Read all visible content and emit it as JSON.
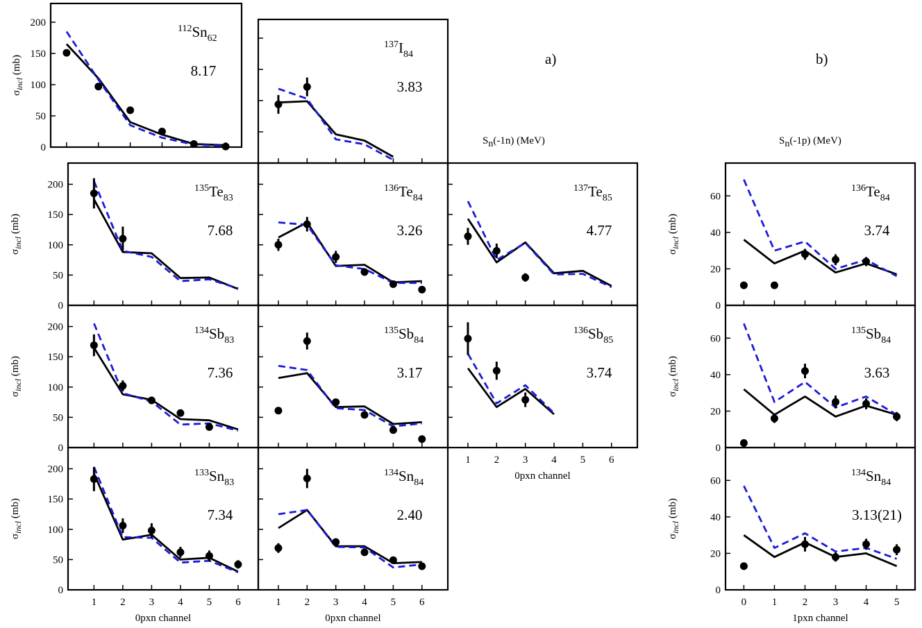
{
  "figure": {
    "label_a": "a)",
    "label_b": "b)",
    "sn_1n_label": "S",
    "sn_1n_sub": "n",
    "sn_1n_rest": "(-1n) (MeV)",
    "sn_1p_label": "S",
    "sn_1p_sub": "n",
    "sn_1p_rest": "(-1p) (MeV)"
  },
  "colors": {
    "theory_solid": "#000000",
    "theory_dashed": "#1a1adc",
    "data": "#000000"
  },
  "chart_data": [
    {
      "id": "sn112",
      "type": "line",
      "nucleus": {
        "mass": "112",
        "symbol": "Sn",
        "n": "62"
      },
      "value_label": "8.17",
      "ylabel": {
        "sigma": "σ",
        "sub": "incl",
        "unit": " (mb)"
      },
      "ylim": [
        0,
        230
      ],
      "yticks": [
        "0",
        "50",
        "100",
        "150",
        "200"
      ],
      "xlim": [
        -0.5,
        5.5
      ],
      "xticks": [],
      "series": [
        {
          "style": "solid",
          "x": [
            0,
            1,
            2,
            3,
            4,
            5
          ],
          "y": [
            165,
            110,
            40,
            20,
            5,
            3
          ]
        },
        {
          "style": "dashed",
          "x": [
            0,
            1,
            2,
            3,
            4,
            5
          ],
          "y": [
            185,
            108,
            35,
            15,
            4,
            2
          ]
        },
        {
          "style": "points",
          "x": [
            0,
            1,
            2,
            3,
            4,
            5
          ],
          "y": [
            151,
            97,
            59,
            25,
            5,
            1
          ],
          "err": [
            0,
            0,
            0,
            0,
            0,
            0
          ]
        }
      ]
    },
    {
      "id": "i137",
      "type": "line",
      "nucleus": {
        "mass": "137",
        "symbol": "I",
        "n": "84"
      },
      "value_label": "3.83",
      "ylim": [
        0,
        230
      ],
      "yticks": [],
      "xlim": [
        0.3,
        6.9
      ],
      "xticks": [],
      "series": [
        {
          "style": "solid",
          "x": [
            1,
            2,
            3,
            4,
            5
          ],
          "y": [
            97,
            99,
            46,
            36,
            10
          ]
        },
        {
          "style": "dashed",
          "x": [
            1,
            2,
            3,
            4,
            5
          ],
          "y": [
            119,
            103,
            38,
            30,
            5
          ]
        },
        {
          "style": "points",
          "x": [
            1,
            2
          ],
          "y": [
            94,
            122
          ],
          "err": [
            15,
            15
          ]
        }
      ]
    },
    {
      "id": "te135",
      "type": "line",
      "nucleus": {
        "mass": "135",
        "symbol": "Te",
        "n": "83"
      },
      "value_label": "7.68",
      "ylabel": {
        "sigma": "σ",
        "sub": "incl",
        "unit": " (mb)"
      },
      "ylim": [
        0,
        235
      ],
      "yticks": [
        "0",
        "50",
        "100",
        "150",
        "200"
      ],
      "xlim": [
        0.1,
        6.7
      ],
      "xticks": [],
      "series": [
        {
          "style": "solid",
          "x": [
            1,
            2,
            3,
            4,
            5,
            6
          ],
          "y": [
            175,
            88,
            86,
            45,
            46,
            27
          ]
        },
        {
          "style": "dashed",
          "x": [
            1,
            2,
            3,
            4,
            5,
            6
          ],
          "y": [
            205,
            90,
            80,
            40,
            43,
            28
          ]
        },
        {
          "style": "points",
          "x": [
            1,
            2
          ],
          "y": [
            185,
            110
          ],
          "err": [
            25,
            20
          ]
        }
      ]
    },
    {
      "id": "te136",
      "type": "line",
      "nucleus": {
        "mass": "136",
        "symbol": "Te",
        "n": "84"
      },
      "value_label": "3.26",
      "ylim": [
        0,
        235
      ],
      "yticks": [],
      "xlim": [
        0.3,
        6.9
      ],
      "xticks": [],
      "series": [
        {
          "style": "solid",
          "x": [
            1,
            2,
            3,
            4,
            5,
            6
          ],
          "y": [
            112,
            137,
            65,
            67,
            38,
            40
          ]
        },
        {
          "style": "dashed",
          "x": [
            1,
            2,
            3,
            4,
            5,
            6
          ],
          "y": [
            137,
            133,
            66,
            60,
            37,
            37
          ]
        },
        {
          "style": "points",
          "x": [
            1,
            2,
            3,
            4,
            5,
            6
          ],
          "y": [
            100,
            134,
            80,
            55,
            35,
            26
          ],
          "err": [
            10,
            12,
            10,
            5,
            5,
            4
          ]
        }
      ]
    },
    {
      "id": "te137",
      "type": "line",
      "nucleus": {
        "mass": "137",
        "symbol": "Te",
        "n": "85"
      },
      "value_label": "4.77",
      "ylim": [
        0,
        235
      ],
      "yticks": [],
      "xlim": [
        0.3,
        6.9
      ],
      "xticks": [],
      "series": [
        {
          "style": "solid",
          "x": [
            1,
            2,
            3,
            4,
            5,
            6
          ],
          "y": [
            143,
            71,
            104,
            53,
            57,
            32
          ]
        },
        {
          "style": "dashed",
          "x": [
            1,
            2,
            3,
            4,
            5,
            6
          ],
          "y": [
            172,
            75,
            103,
            51,
            52,
            30
          ]
        },
        {
          "style": "points",
          "x": [
            1,
            2,
            3
          ],
          "y": [
            114,
            90,
            46
          ],
          "err": [
            14,
            12,
            7
          ]
        }
      ]
    },
    {
      "id": "sb134",
      "type": "line",
      "nucleus": {
        "mass": "134",
        "symbol": "Sb",
        "n": "83"
      },
      "value_label": "7.36",
      "ylabel": {
        "sigma": "σ",
        "sub": "incl",
        "unit": " (mb)"
      },
      "ylim": [
        0,
        235
      ],
      "yticks": [
        "0",
        "50",
        "100",
        "150",
        "200"
      ],
      "xlim": [
        0.1,
        6.7
      ],
      "xticks": [],
      "series": [
        {
          "style": "solid",
          "x": [
            1,
            2,
            3,
            4,
            5,
            6
          ],
          "y": [
            165,
            88,
            79,
            47,
            45,
            30
          ]
        },
        {
          "style": "dashed",
          "x": [
            1,
            2,
            3,
            4,
            5,
            6
          ],
          "y": [
            205,
            90,
            76,
            38,
            40,
            28
          ]
        },
        {
          "style": "points",
          "x": [
            1,
            2,
            3,
            4,
            5
          ],
          "y": [
            169,
            102,
            78,
            57,
            34
          ],
          "err": [
            18,
            9,
            6,
            4,
            3
          ]
        }
      ]
    },
    {
      "id": "sb135",
      "type": "line",
      "nucleus": {
        "mass": "135",
        "symbol": "Sb",
        "n": "84"
      },
      "value_label": "3.17",
      "ylim": [
        0,
        235
      ],
      "yticks": [],
      "xlim": [
        0.3,
        6.9
      ],
      "xticks": [],
      "series": [
        {
          "style": "solid",
          "x": [
            1,
            2,
            3,
            4,
            5,
            6
          ],
          "y": [
            115,
            123,
            67,
            68,
            39,
            42
          ]
        },
        {
          "style": "dashed",
          "x": [
            1,
            2,
            3,
            4,
            5,
            6
          ],
          "y": [
            135,
            128,
            65,
            62,
            35,
            40
          ]
        },
        {
          "style": "points",
          "x": [
            1,
            2,
            3,
            4,
            5,
            6
          ],
          "y": [
            61,
            176,
            75,
            54,
            29,
            14
          ],
          "err": [
            5,
            14,
            5,
            4,
            4,
            3
          ]
        }
      ]
    },
    {
      "id": "sb136",
      "type": "line",
      "nucleus": {
        "mass": "136",
        "symbol": "Sb",
        "n": "85"
      },
      "value_label": "3.74",
      "ylim": [
        0,
        235
      ],
      "yticks": [],
      "xlim": [
        0.3,
        6.9
      ],
      "xticks": [
        "1",
        "2",
        "3",
        "4",
        "5",
        "6"
      ],
      "xlabel": "0pxn channel",
      "series": [
        {
          "style": "solid",
          "x": [
            1,
            2,
            3,
            4
          ],
          "y": [
            131,
            67,
            97,
            55
          ]
        },
        {
          "style": "dashed",
          "x": [
            1,
            2,
            3,
            4
          ],
          "y": [
            155,
            73,
            103,
            57
          ]
        },
        {
          "style": "points",
          "x": [
            1,
            2,
            3
          ],
          "y": [
            180,
            127,
            79
          ],
          "err": [
            27,
            15,
            12
          ]
        }
      ]
    },
    {
      "id": "sn133",
      "type": "line",
      "nucleus": {
        "mass": "133",
        "symbol": "Sn",
        "n": "83"
      },
      "value_label": "7.34",
      "ylabel": {
        "sigma": "σ",
        "sub": "incl",
        "unit": " (mb)"
      },
      "ylim": [
        0,
        235
      ],
      "yticks": [
        "0",
        "50",
        "100",
        "150",
        "200"
      ],
      "xlim": [
        0.1,
        6.7
      ],
      "xticks": [
        "1",
        "2",
        "3",
        "4",
        "5",
        "6"
      ],
      "xlabel": "0pxn channel",
      "series": [
        {
          "style": "solid",
          "x": [
            1,
            2,
            3,
            4,
            5,
            6
          ],
          "y": [
            192,
            83,
            91,
            50,
            53,
            30
          ]
        },
        {
          "style": "dashed",
          "x": [
            1,
            2,
            3,
            4,
            5,
            6
          ],
          "y": [
            203,
            87,
            86,
            45,
            48,
            29
          ]
        },
        {
          "style": "points",
          "x": [
            1,
            2,
            3,
            4,
            5,
            6
          ],
          "y": [
            183,
            106,
            98,
            62,
            56,
            42
          ],
          "err": [
            20,
            12,
            12,
            9,
            9,
            7
          ]
        }
      ]
    },
    {
      "id": "sn134",
      "type": "line",
      "nucleus": {
        "mass": "134",
        "symbol": "Sn",
        "n": "84"
      },
      "value_label": "2.40",
      "ylim": [
        0,
        235
      ],
      "yticks": [],
      "xlim": [
        0.3,
        6.9
      ],
      "xticks": [
        "1",
        "2",
        "3",
        "4",
        "5",
        "6"
      ],
      "xlabel": "0pxn channel",
      "series": [
        {
          "style": "solid",
          "x": [
            1,
            2,
            3,
            4,
            5,
            6
          ],
          "y": [
            102,
            132,
            72,
            72,
            44,
            46
          ]
        },
        {
          "style": "dashed",
          "x": [
            1,
            2,
            3,
            4,
            5,
            6
          ],
          "y": [
            125,
            132,
            71,
            70,
            37,
            42
          ]
        },
        {
          "style": "points",
          "x": [
            1,
            2,
            3,
            4,
            5,
            6
          ],
          "y": [
            69,
            184,
            79,
            62,
            49,
            39
          ],
          "err": [
            8,
            16,
            6,
            5,
            5,
            4
          ]
        }
      ]
    },
    {
      "id": "te136b",
      "type": "line",
      "nucleus": {
        "mass": "136",
        "symbol": "Te",
        "n": "84"
      },
      "value_label": "3.74",
      "ylabel": {
        "sigma": "σ",
        "sub": "incl",
        "unit": " (mb)"
      },
      "ylim": [
        0,
        78
      ],
      "yticks": [
        "0",
        "20",
        "40",
        "60"
      ],
      "xlim": [
        -0.6,
        5.6
      ],
      "xticks": [],
      "series": [
        {
          "style": "solid",
          "x": [
            0,
            1,
            2,
            3,
            4,
            5
          ],
          "y": [
            36,
            23,
            30,
            18,
            23,
            17
          ]
        },
        {
          "style": "dashed",
          "x": [
            0,
            1,
            2,
            3,
            4,
            5
          ],
          "y": [
            69,
            30,
            35,
            20,
            25,
            16
          ]
        },
        {
          "style": "points",
          "x": [
            0,
            1,
            2,
            3,
            4
          ],
          "y": [
            11,
            11,
            28,
            25,
            24
          ],
          "err": [
            0,
            0,
            3,
            3,
            2.5
          ]
        }
      ]
    },
    {
      "id": "sb135b",
      "type": "line",
      "nucleus": {
        "mass": "135",
        "symbol": "Sb",
        "n": "84"
      },
      "value_label": "3.63",
      "ylabel": {
        "sigma": "σ",
        "sub": "incl",
        "unit": " (mb)"
      },
      "ylim": [
        0,
        78
      ],
      "yticks": [
        "0",
        "20",
        "40",
        "60"
      ],
      "xlim": [
        -0.6,
        5.6
      ],
      "xticks": [],
      "series": [
        {
          "style": "solid",
          "x": [
            0,
            1,
            2,
            3,
            4,
            5
          ],
          "y": [
            32,
            18,
            28,
            17,
            23,
            18
          ]
        },
        {
          "style": "dashed",
          "x": [
            0,
            1,
            2,
            3,
            4,
            5
          ],
          "y": [
            68,
            25,
            36,
            22,
            28,
            18
          ]
        },
        {
          "style": "points",
          "x": [
            0,
            1,
            2,
            3,
            4,
            5
          ],
          "y": [
            2.5,
            16,
            42,
            25,
            24,
            17
          ],
          "err": [
            0,
            2.5,
            4,
            3.5,
            3,
            2.5
          ]
        }
      ]
    },
    {
      "id": "sn134b",
      "type": "line",
      "nucleus": {
        "mass": "134",
        "symbol": "Sn",
        "n": "84"
      },
      "value_label": "3.13(21)",
      "ylabel": {
        "sigma": "σ",
        "sub": "incl",
        "unit": " (mb)"
      },
      "ylim": [
        0,
        78
      ],
      "yticks": [
        "0",
        "20",
        "40",
        "60"
      ],
      "xlim": [
        -0.6,
        5.6
      ],
      "xticks": [
        "0",
        "1",
        "2",
        "3",
        "4",
        "5"
      ],
      "xlabel": "1pxn channel",
      "series": [
        {
          "style": "solid",
          "x": [
            0,
            1,
            2,
            3,
            4,
            5
          ],
          "y": [
            30,
            18,
            26,
            18,
            20,
            13
          ]
        },
        {
          "style": "dashed",
          "x": [
            0,
            1,
            2,
            3,
            4,
            5
          ],
          "y": [
            57,
            23,
            31,
            21,
            23,
            17
          ]
        },
        {
          "style": "points",
          "x": [
            0,
            1,
            2,
            3,
            4,
            5
          ],
          "y": [
            13,
            null,
            25,
            18,
            25,
            22
          ],
          "err": [
            0,
            0,
            4,
            2.5,
            3,
            3
          ]
        }
      ]
    }
  ]
}
